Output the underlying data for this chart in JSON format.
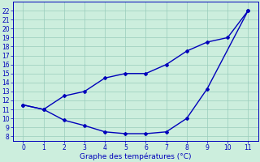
{
  "line1_x": [
    0,
    1,
    2,
    3,
    4,
    5,
    6,
    7,
    8,
    9,
    10,
    11
  ],
  "line1_y": [
    11.5,
    11.0,
    12.5,
    13.0,
    14.5,
    15.0,
    15.0,
    16.0,
    17.5,
    18.5,
    19.0,
    22.0
  ],
  "line2_x": [
    0,
    1,
    2,
    3,
    4,
    5,
    6,
    7,
    8,
    9,
    11
  ],
  "line2_y": [
    11.5,
    11.0,
    9.8,
    9.2,
    8.5,
    8.3,
    8.3,
    8.5,
    10.0,
    13.3,
    22.0
  ],
  "line_color": "#0000bb",
  "marker": "D",
  "markersize": 2.0,
  "xlim": [
    -0.5,
    11.5
  ],
  "ylim": [
    7.5,
    23.0
  ],
  "yticks": [
    8,
    9,
    10,
    11,
    12,
    13,
    14,
    15,
    16,
    17,
    18,
    19,
    20,
    21,
    22
  ],
  "xticks": [
    0,
    1,
    2,
    3,
    4,
    5,
    6,
    7,
    8,
    9,
    10,
    11
  ],
  "xlabel": "Graphe des températures (°C)",
  "xlabel_fontsize": 6.5,
  "tick_fontsize": 5.5,
  "background_color": "#cceedd",
  "grid_color": "#99ccbb",
  "line_width": 1.0
}
